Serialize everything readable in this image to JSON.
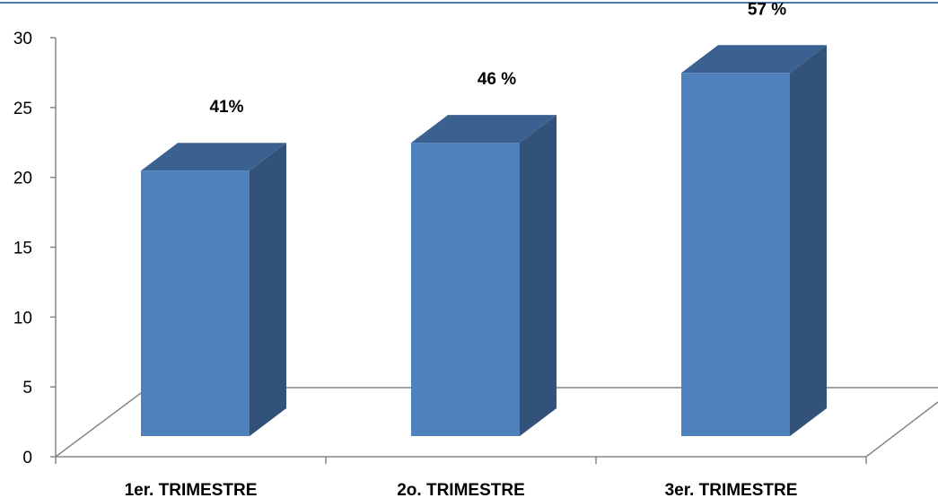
{
  "chart_data": {
    "type": "bar",
    "categories": [
      "1er. TRIMESTRE",
      "2o. TRIMESTRE",
      "3er. TRIMESTRE"
    ],
    "values": [
      19,
      21,
      26
    ],
    "data_labels": [
      "41%",
      "46 %",
      "57 %"
    ],
    "title": "",
    "xlabel": "",
    "ylabel": "",
    "ylim": [
      0,
      30
    ],
    "yticks": [
      "0",
      "5",
      "10",
      "15",
      "20",
      "25",
      "30"
    ],
    "grid": false,
    "legend": "none",
    "style": "3d-column"
  },
  "colors": {
    "bar_front": "#4F81BD",
    "bar_side": "#32527A",
    "bar_top": "#3B6190",
    "axis": "#868686",
    "top_rule": "#4A7AB3"
  }
}
